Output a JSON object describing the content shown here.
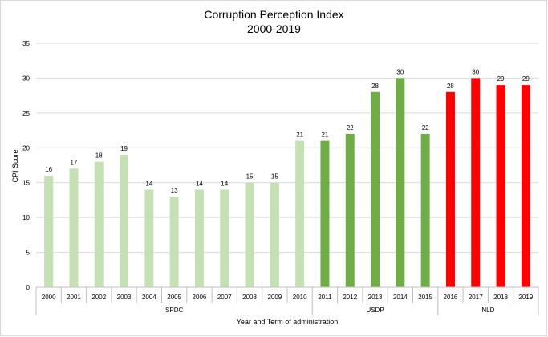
{
  "chart_data": {
    "type": "bar",
    "title": "Corruption Perception Index",
    "subtitle": "2000-2019",
    "xlabel": "Year and Term of administration",
    "ylabel": "CPI Score",
    "ylim": [
      0,
      35
    ],
    "yticks": [
      0,
      5,
      10,
      15,
      20,
      25,
      30,
      35
    ],
    "grid": true,
    "legend": "none",
    "categories": [
      "2000",
      "2001",
      "2002",
      "2003",
      "2004",
      "2005",
      "2006",
      "2007",
      "2008",
      "2009",
      "2010",
      "2011",
      "2012",
      "2013",
      "2014",
      "2015",
      "2016",
      "2017",
      "2018",
      "2019"
    ],
    "values": [
      16,
      17,
      18,
      19,
      14,
      13,
      14,
      14,
      15,
      15,
      21,
      21,
      22,
      28,
      30,
      22,
      28,
      30,
      29,
      29
    ],
    "bar_colors": [
      "#c5e0b4",
      "#c5e0b4",
      "#c5e0b4",
      "#c5e0b4",
      "#c5e0b4",
      "#c5e0b4",
      "#c5e0b4",
      "#c5e0b4",
      "#c5e0b4",
      "#c5e0b4",
      "#c5e0b4",
      "#70ad47",
      "#70ad47",
      "#70ad47",
      "#70ad47",
      "#70ad47",
      "#ff0000",
      "#ff0000",
      "#ff0000",
      "#ff0000"
    ],
    "groups": [
      {
        "label": "SPDC",
        "start": 0,
        "end": 10
      },
      {
        "label": "USDP",
        "start": 11,
        "end": 15
      },
      {
        "label": "NLD",
        "start": 16,
        "end": 19
      }
    ],
    "gridline_color": "#d9d9d9",
    "axis_color": "#bfbfbf"
  }
}
